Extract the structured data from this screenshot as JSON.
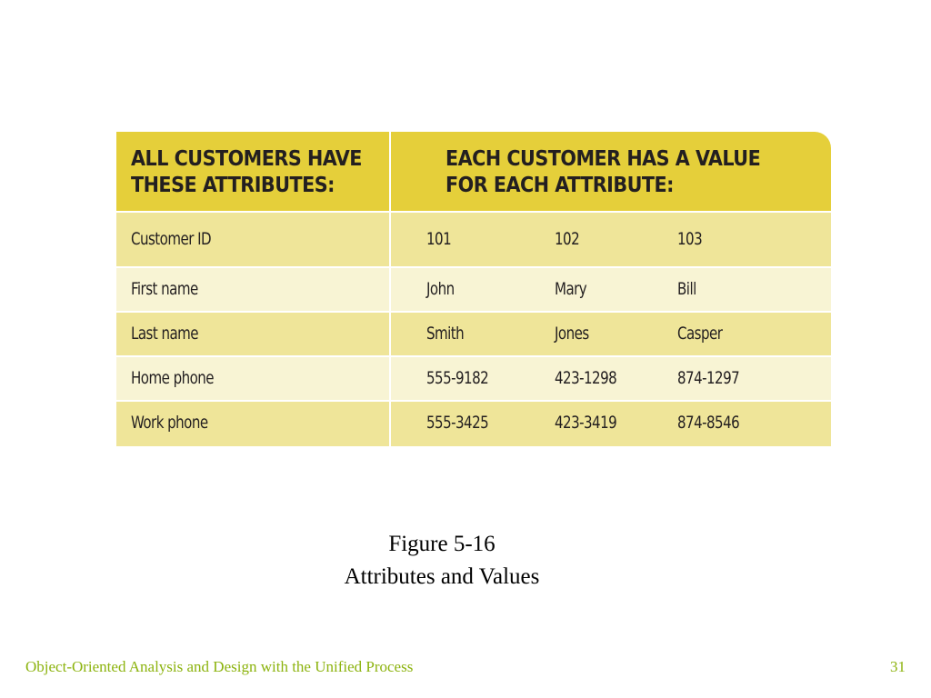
{
  "table": {
    "header_left": [
      "ALL CUSTOMERS HAVE",
      "THESE ATTRIBUTES:"
    ],
    "header_right": [
      "EACH CUSTOMER HAS A VALUE",
      "FOR EACH ATTRIBUTE:"
    ],
    "rows": [
      {
        "attribute": "Customer ID",
        "values": [
          "101",
          "102",
          "103"
        ]
      },
      {
        "attribute": "First name",
        "values": [
          "John",
          "Mary",
          "Bill"
        ]
      },
      {
        "attribute": "Last name",
        "values": [
          "Smith",
          "Jones",
          "Casper"
        ]
      },
      {
        "attribute": "Home phone",
        "values": [
          "555-9182",
          "423-1298",
          "874-1297"
        ]
      },
      {
        "attribute": "Work phone",
        "values": [
          "555-3425",
          "423-3419",
          "874-8546"
        ]
      }
    ],
    "colors": {
      "header": "#e5cf3a",
      "row_dark": "#efe599",
      "row_light": "#f8f4d4"
    }
  },
  "caption": {
    "title": "Figure 5-16",
    "subtitle": "Attributes and Values"
  },
  "footer": {
    "title": "Object-Oriented Analysis and Design with the Unified Process",
    "page_number": "31",
    "color": "#8cb30e"
  }
}
